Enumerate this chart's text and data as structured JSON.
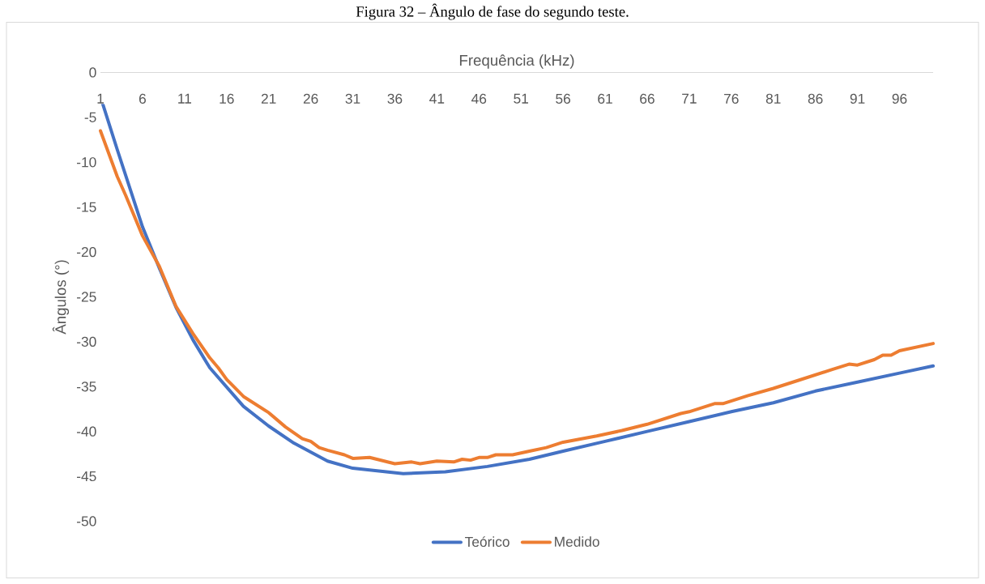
{
  "chart_data": {
    "type": "line",
    "title": "Figura 32 – Ângulo de fase do segundo teste.",
    "xlabel": "Frequência (kHz)",
    "ylabel": "Ângulos (°)",
    "xlim": [
      1,
      100
    ],
    "xticks": [
      1,
      6,
      11,
      16,
      21,
      26,
      31,
      36,
      41,
      46,
      51,
      56,
      61,
      66,
      71,
      76,
      81,
      86,
      91,
      96
    ],
    "ylim": [
      -50,
      0
    ],
    "yticks": [
      0,
      -5,
      -10,
      -15,
      -20,
      -25,
      -30,
      -35,
      -40,
      -45,
      -50
    ],
    "grid": false,
    "legend": "bottom",
    "marker": "none",
    "line_style": "solid",
    "series": [
      {
        "name": "Teórico",
        "color": "#4472c4",
        "x": [
          1,
          3,
          6,
          8,
          10,
          12,
          14,
          18,
          21,
          24,
          28,
          31,
          37,
          42,
          47,
          52,
          56,
          61,
          66,
          71,
          76,
          81,
          86,
          91,
          96,
          100
        ],
        "values": [
          -2.7,
          -8.6,
          -17.2,
          -21.8,
          -26.2,
          -29.8,
          -32.9,
          -37.2,
          -39.4,
          -41.3,
          -43.3,
          -44.1,
          -44.7,
          -44.5,
          -43.9,
          -43.1,
          -42.2,
          -41.1,
          -40.0,
          -38.9,
          -37.8,
          -36.8,
          -35.5,
          -34.5,
          -33.5,
          -32.7
        ]
      },
      {
        "name": "Medido",
        "color": "#ed7d31",
        "x": [
          1,
          3,
          4,
          6,
          8,
          10,
          12,
          14,
          15,
          16,
          18,
          21,
          23,
          25,
          26,
          27,
          28,
          30,
          31,
          33,
          36,
          38,
          39,
          41,
          43,
          44,
          45,
          46,
          47,
          48,
          50,
          52,
          54,
          56,
          60,
          63,
          66,
          70,
          71,
          74,
          75,
          78,
          81,
          84,
          88,
          90,
          91,
          93,
          94,
          95,
          96,
          100
        ],
        "values": [
          -6.5,
          -11.6,
          -13.7,
          -18.2,
          -21.6,
          -26.1,
          -29.1,
          -31.8,
          -32.9,
          -34.2,
          -36.1,
          -37.9,
          -39.5,
          -40.8,
          -41.1,
          -41.8,
          -42.1,
          -42.6,
          -43.0,
          -42.9,
          -43.6,
          -43.4,
          -43.6,
          -43.3,
          -43.4,
          -43.1,
          -43.2,
          -42.9,
          -42.9,
          -42.6,
          -42.6,
          -42.2,
          -41.8,
          -41.2,
          -40.5,
          -39.9,
          -39.2,
          -38.0,
          -37.8,
          -36.9,
          -36.9,
          -36.0,
          -35.2,
          -34.3,
          -33.1,
          -32.5,
          -32.6,
          -32.0,
          -31.5,
          -31.5,
          -31.0,
          -30.2
        ]
      }
    ]
  }
}
